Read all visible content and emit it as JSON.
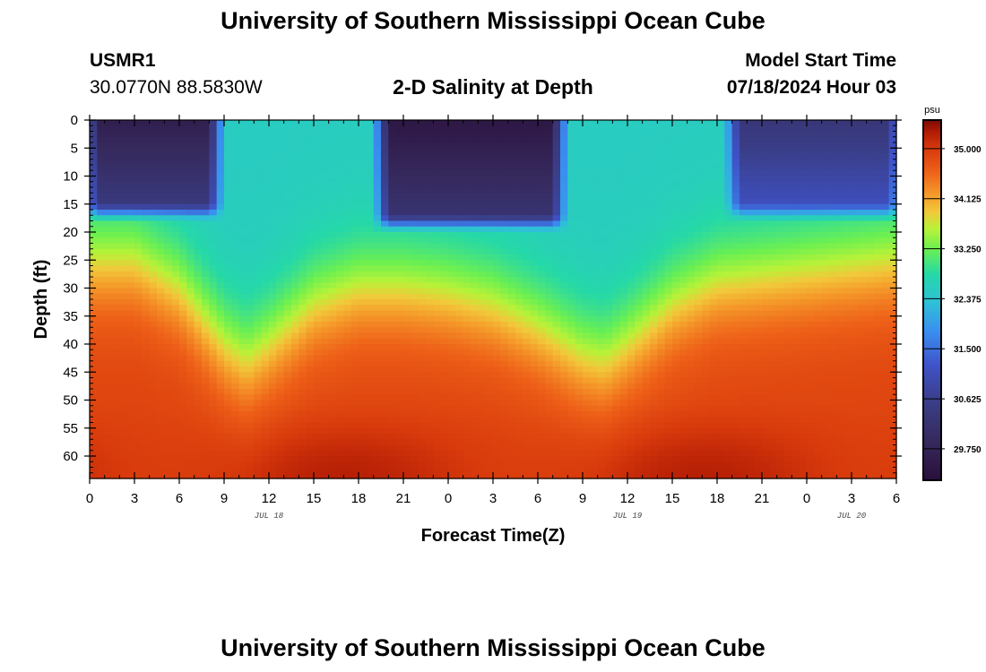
{
  "titles": {
    "top": "University of Southern Mississippi Ocean Cube",
    "bottom": "University of Southern Mississippi Ocean Cube"
  },
  "station": {
    "name": "USMR1",
    "coords": "30.0770N  88.5830W"
  },
  "plot_title": "2-D Salinity at Depth",
  "model_start": {
    "label": "Model Start Time",
    "value": "07/18/2024 Hour 03"
  },
  "chart_data": {
    "type": "heatmap",
    "title": "2-D Salinity at Depth",
    "xlabel": "Forecast Time(Z)",
    "ylabel": "Depth (ft)",
    "x_unit": "hours since 07/18 00Z",
    "xlim": [
      0,
      54
    ],
    "ylim": [
      0,
      64
    ],
    "y_inverted": true,
    "x_ticks": [
      {
        "x": 0,
        "label": "0"
      },
      {
        "x": 3,
        "label": "3"
      },
      {
        "x": 6,
        "label": "6"
      },
      {
        "x": 9,
        "label": "9"
      },
      {
        "x": 12,
        "label": "12"
      },
      {
        "x": 15,
        "label": "15"
      },
      {
        "x": 18,
        "label": "18"
      },
      {
        "x": 21,
        "label": "21"
      },
      {
        "x": 24,
        "label": "0"
      },
      {
        "x": 27,
        "label": "3"
      },
      {
        "x": 30,
        "label": "6"
      },
      {
        "x": 33,
        "label": "9"
      },
      {
        "x": 36,
        "label": "12"
      },
      {
        "x": 39,
        "label": "15"
      },
      {
        "x": 42,
        "label": "18"
      },
      {
        "x": 45,
        "label": "21"
      },
      {
        "x": 48,
        "label": "0"
      },
      {
        "x": 51,
        "label": "3"
      },
      {
        "x": 54,
        "label": "6"
      }
    ],
    "date_labels": [
      {
        "x": 12,
        "label": "JUL 18"
      },
      {
        "x": 36,
        "label": "JUL 19"
      },
      {
        "x": 51,
        "label": "JUL 20"
      }
    ],
    "y_ticks": [
      0,
      5,
      10,
      15,
      20,
      25,
      30,
      35,
      40,
      45,
      50,
      55,
      60
    ],
    "colorbar": {
      "unit": "psu",
      "min": 29.2,
      "max": 35.5,
      "ticks": [
        "35.000",
        "34.125",
        "33.250",
        "32.375",
        "31.500",
        "30.625",
        "29.750"
      ],
      "stops": [
        {
          "v": 29.2,
          "color": "#2a0f3a"
        },
        {
          "v": 29.9,
          "color": "#362a5e"
        },
        {
          "v": 30.6,
          "color": "#3a3f8a"
        },
        {
          "v": 31.2,
          "color": "#3f52c8"
        },
        {
          "v": 31.8,
          "color": "#3a8ef0"
        },
        {
          "v": 32.3,
          "color": "#2ec0d8"
        },
        {
          "v": 32.8,
          "color": "#25d8a8"
        },
        {
          "v": 33.25,
          "color": "#6cf050"
        },
        {
          "v": 33.6,
          "color": "#b8f238"
        },
        {
          "v": 33.9,
          "color": "#f2c83a"
        },
        {
          "v": 34.2,
          "color": "#f59a2a"
        },
        {
          "v": 34.6,
          "color": "#ee6018"
        },
        {
          "v": 35.0,
          "color": "#d83a0c"
        },
        {
          "v": 35.3,
          "color": "#b01a05"
        },
        {
          "v": 35.5,
          "color": "#7a0c04"
        }
      ]
    },
    "halocline_depth": {
      "description": "approximate mid-gradient (33.25 psu) depth in ft by forecast hour",
      "hours": [
        0,
        3,
        6,
        9,
        10.5,
        12,
        15,
        18,
        21,
        24,
        27,
        30,
        33,
        34.5,
        36,
        39,
        42,
        45,
        48,
        51,
        54
      ],
      "depth": [
        25,
        25,
        30,
        40,
        43,
        40,
        33,
        30,
        30,
        31,
        33,
        37,
        42,
        43,
        40,
        33,
        29,
        28,
        27,
        26,
        25
      ]
    },
    "fresh_lens": {
      "description": "surface low-salinity layer: start hour, end hour, min salinity, bottom depth ft",
      "segments": [
        {
          "start": 0,
          "end": 8.5,
          "min": 29.6,
          "bottom": 17
        },
        {
          "start": 19.5,
          "end": 31.5,
          "min": 29.4,
          "bottom": 19
        },
        {
          "start": 43,
          "end": 54,
          "min": 30.3,
          "bottom": 17
        }
      ]
    }
  }
}
